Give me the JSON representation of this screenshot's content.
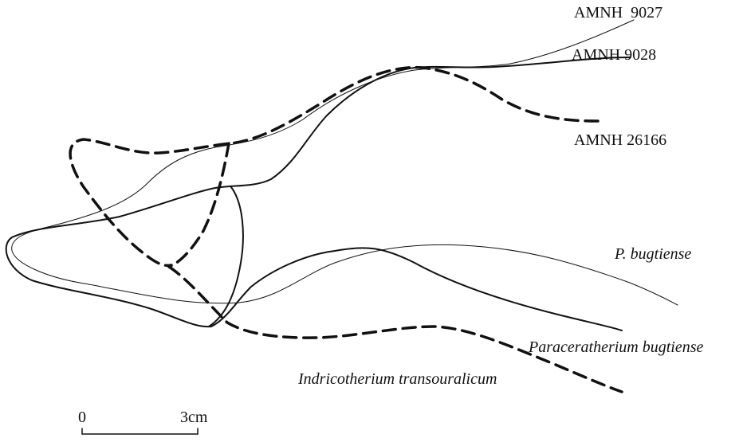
{
  "labels": {
    "amnh_9027": "AMNH  9027",
    "amnh_9028": "AMNH 9028",
    "amnh_26166": "AMNH 26166",
    "p_bugtiense": "P. bugtiense",
    "paraceratherium": "Paraceratherium bugtiense",
    "indricotherium": "Indricotherium transouralicum"
  },
  "scale_bar": {
    "start": "0",
    "end": "3cm"
  }
}
